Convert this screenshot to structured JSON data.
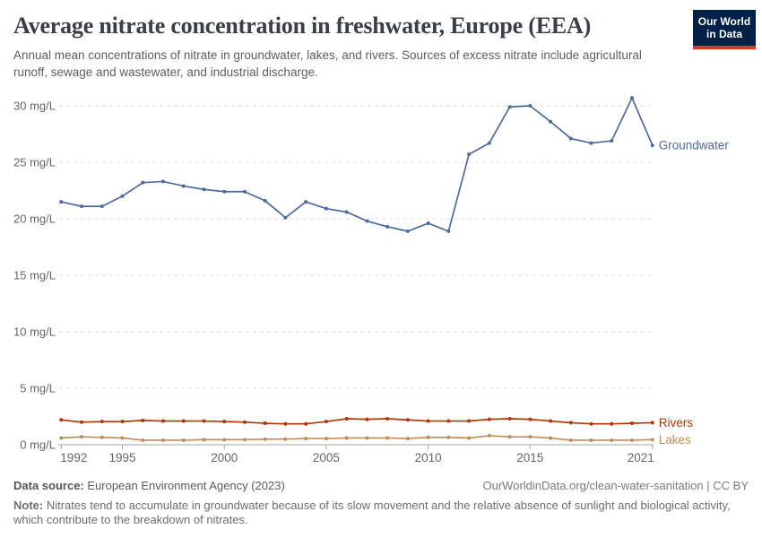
{
  "header": {
    "title": "Average nitrate concentration in freshwater, Europe (EEA)",
    "subtitle": "Annual mean concentrations of nitrate in groundwater, lakes, and rivers. Sources of excess nitrate include agricultural runoff, sewage and wastewater, and industrial discharge.",
    "logo": {
      "line1": "Our World",
      "line2": "in Data",
      "bg_color": "#002147",
      "bar_color": "#D7382C"
    }
  },
  "chart_data": {
    "type": "line",
    "title": "Average nitrate concentration in freshwater, Europe (EEA)",
    "unit": "mg/L",
    "xlim": [
      1992,
      2021
    ],
    "ylim": [
      0,
      30
    ],
    "grid": "dashed horizontal",
    "legend_position": "line-end labels, right",
    "xticks": [
      1992,
      1995,
      2000,
      2005,
      2010,
      2015,
      2021
    ],
    "yticks": [
      0,
      5,
      10,
      15,
      20,
      25,
      30
    ],
    "ytick_labels": [
      "0 mg/L",
      "5 mg/L",
      "10 mg/L",
      "15 mg/L",
      "20 mg/L",
      "25 mg/L",
      "30 mg/L"
    ],
    "x": [
      1992,
      1993,
      1994,
      1995,
      1996,
      1997,
      1998,
      1999,
      2000,
      2001,
      2002,
      2003,
      2004,
      2005,
      2006,
      2007,
      2008,
      2009,
      2010,
      2011,
      2012,
      2013,
      2014,
      2015,
      2016,
      2017,
      2018,
      2019,
      2020,
      2021
    ],
    "series": [
      {
        "name": "Groundwater",
        "color": "#4C6A9C",
        "values": [
          21.5,
          21.1,
          21.1,
          22.0,
          23.2,
          23.3,
          22.9,
          22.6,
          22.4,
          22.4,
          21.6,
          20.1,
          21.5,
          20.9,
          20.6,
          19.8,
          19.3,
          18.9,
          19.6,
          18.9,
          25.7,
          26.7,
          29.9,
          30.0,
          28.6,
          27.1,
          26.7,
          26.9,
          30.7,
          26.5
        ]
      },
      {
        "name": "Rivers",
        "color": "#B13507",
        "values": [
          2.2,
          2.0,
          2.05,
          2.05,
          2.15,
          2.1,
          2.1,
          2.1,
          2.05,
          2.0,
          1.9,
          1.85,
          1.85,
          2.05,
          2.3,
          2.25,
          2.3,
          2.2,
          2.1,
          2.1,
          2.1,
          2.25,
          2.3,
          2.25,
          2.1,
          1.95,
          1.85,
          1.85,
          1.9,
          1.95
        ]
      },
      {
        "name": "Lakes",
        "color": "#BC8E5A",
        "values": [
          0.6,
          0.7,
          0.65,
          0.6,
          0.4,
          0.4,
          0.4,
          0.45,
          0.45,
          0.45,
          0.5,
          0.5,
          0.55,
          0.55,
          0.6,
          0.6,
          0.6,
          0.55,
          0.65,
          0.65,
          0.6,
          0.8,
          0.7,
          0.7,
          0.6,
          0.4,
          0.4,
          0.4,
          0.4,
          0.45
        ]
      }
    ]
  },
  "footer": {
    "source_label": "Data source:",
    "source_text": " European Environment Agency (2023)",
    "credit": "OurWorldinData.org/clean-water-sanitation | CC BY",
    "note_label": "Note:",
    "note_text": " Nitrates tend to accumulate in groundwater because of its slow movement and the relative absence of sunlight and biological activity, which contribute to the breakdown of nitrates."
  }
}
